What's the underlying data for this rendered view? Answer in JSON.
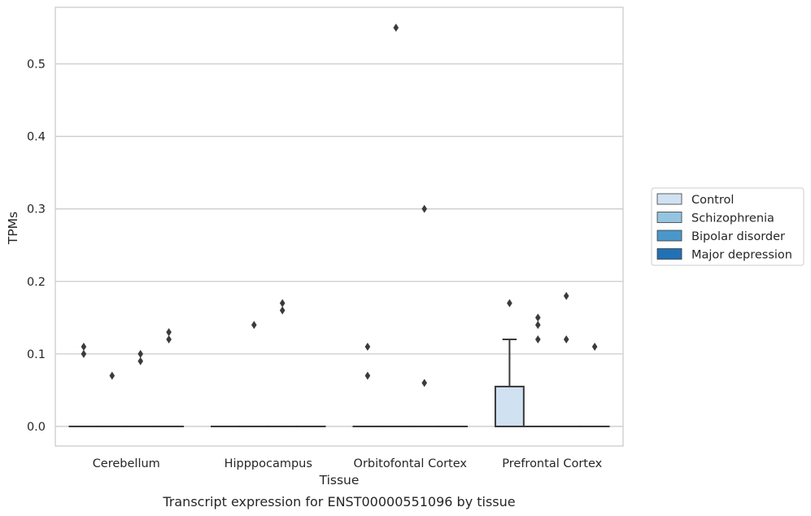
{
  "chart_data": {
    "type": "box",
    "xlabel": "Tissue",
    "ylabel": "TPMs",
    "caption": "Transcript expression for ENST00000551096 by tissue",
    "ylim": [
      -0.027,
      0.578
    ],
    "y_ticks": [
      "0.0",
      "0.1",
      "0.2",
      "0.3",
      "0.4",
      "0.5"
    ],
    "y_tick_values": [
      0,
      0.1,
      0.2,
      0.3,
      0.4,
      0.5
    ],
    "grid": "horizontal",
    "legend_position": "right",
    "categories": [
      "Cerebellum",
      "Hipppocampus",
      "Orbitofontal Cortex",
      "Prefrontal Cortex"
    ],
    "series": [
      {
        "name": "Control",
        "color": "#d0e1f2",
        "boxes": [
          {
            "q1": 0,
            "median": 0,
            "q3": 0,
            "whisker_low": 0,
            "whisker_high": 0,
            "outliers": [
              0.1,
              0.11
            ]
          },
          {
            "q1": 0,
            "median": 0,
            "q3": 0,
            "whisker_low": 0,
            "whisker_high": 0,
            "outliers": []
          },
          {
            "q1": 0,
            "median": 0,
            "q3": 0,
            "whisker_low": 0,
            "whisker_high": 0,
            "outliers": [
              0.07,
              0.11
            ]
          },
          {
            "q1": 0,
            "median": 0,
            "q3": 0.055,
            "whisker_low": 0,
            "whisker_high": 0.12,
            "outliers": [
              0.17
            ]
          }
        ]
      },
      {
        "name": "Schizophrenia",
        "color": "#94c4df",
        "boxes": [
          {
            "q1": 0,
            "median": 0,
            "q3": 0,
            "whisker_low": 0,
            "whisker_high": 0,
            "outliers": [
              0.07
            ]
          },
          {
            "q1": 0,
            "median": 0,
            "q3": 0,
            "whisker_low": 0,
            "whisker_high": 0,
            "outliers": [
              0.14
            ]
          },
          {
            "q1": 0,
            "median": 0,
            "q3": 0,
            "whisker_low": 0,
            "whisker_high": 0,
            "outliers": [
              0.55
            ]
          },
          {
            "q1": 0,
            "median": 0,
            "q3": 0,
            "whisker_low": 0,
            "whisker_high": 0,
            "outliers": [
              0.12,
              0.14,
              0.15
            ]
          }
        ]
      },
      {
        "name": "Bipolar disorder",
        "color": "#4a98c9",
        "boxes": [
          {
            "q1": 0,
            "median": 0,
            "q3": 0,
            "whisker_low": 0,
            "whisker_high": 0,
            "outliers": [
              0.09,
              0.1
            ]
          },
          {
            "q1": 0,
            "median": 0,
            "q3": 0,
            "whisker_low": 0,
            "whisker_high": 0,
            "outliers": [
              0.16,
              0.17
            ]
          },
          {
            "q1": 0,
            "median": 0,
            "q3": 0,
            "whisker_low": 0,
            "whisker_high": 0,
            "outliers": [
              0.06,
              0.3
            ]
          },
          {
            "q1": 0,
            "median": 0,
            "q3": 0,
            "whisker_low": 0,
            "whisker_high": 0,
            "outliers": [
              0.12,
              0.18
            ]
          }
        ]
      },
      {
        "name": "Major depression",
        "color": "#2171b5",
        "boxes": [
          {
            "q1": 0,
            "median": 0,
            "q3": 0,
            "whisker_low": 0,
            "whisker_high": 0,
            "outliers": [
              0.12,
              0.13
            ]
          },
          {
            "q1": 0,
            "median": 0,
            "q3": 0,
            "whisker_low": 0,
            "whisker_high": 0,
            "outliers": []
          },
          {
            "q1": 0,
            "median": 0,
            "q3": 0,
            "whisker_low": 0,
            "whisker_high": 0,
            "outliers": []
          },
          {
            "q1": 0,
            "median": 0,
            "q3": 0,
            "whisker_low": 0,
            "whisker_high": 0,
            "outliers": [
              0.11
            ]
          }
        ]
      }
    ]
  }
}
